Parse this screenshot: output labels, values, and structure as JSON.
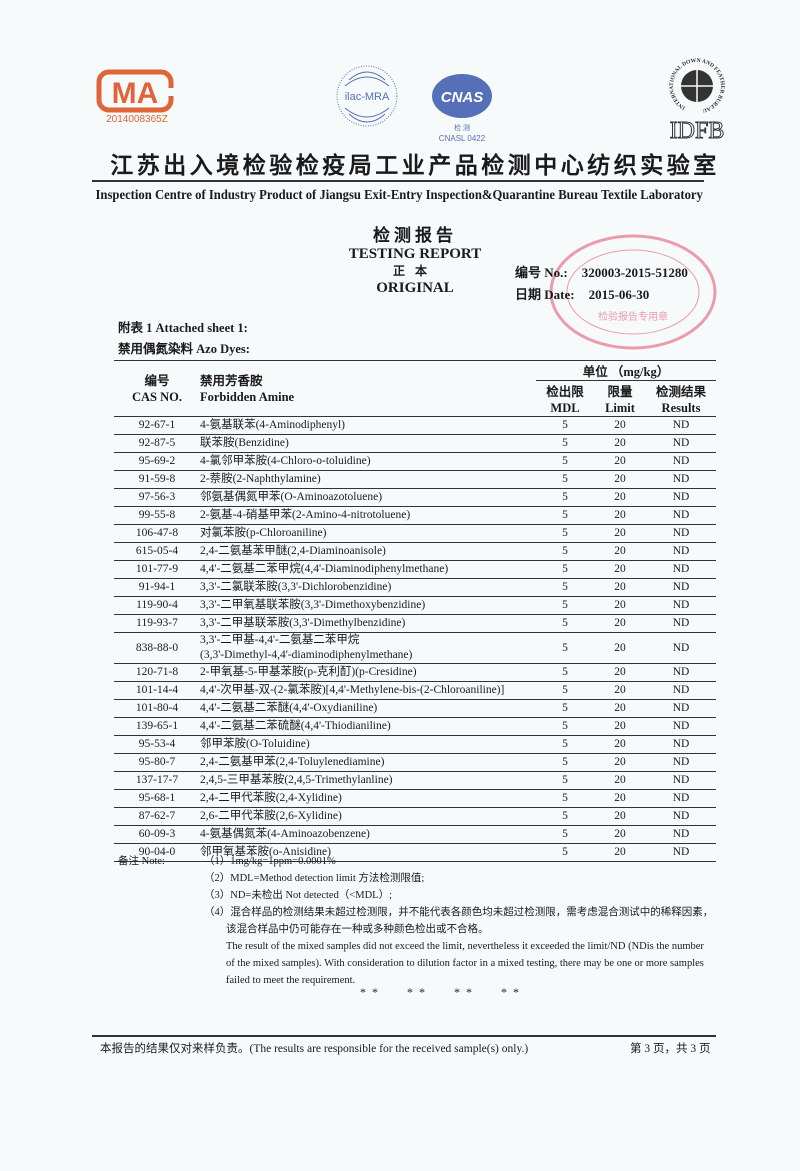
{
  "header": {
    "cma_logo_text": "MA",
    "cma_number": "2014008365Z",
    "ilac_logo_text": "ilac-MRA",
    "cnas_logo_text": "CNAS",
    "cnas_sub": "检 测",
    "cnas_number": "CNASL 0422",
    "idfb_logo_text": "IDFB",
    "idfb_ring_text": "INTERNATIONAL DOWN AND FEATHER BUREAU",
    "title_cn": "江苏出入境检验检疫局工业产品检测中心纺织实验室",
    "title_en": "Inspection Centre of Industry Product of Jiangsu Exit-Entry Inspection&Quarantine Bureau Textile Laboratory"
  },
  "report": {
    "title_cn": "检测报告",
    "title_en": "TESTING REPORT",
    "copy_cn": "正本",
    "copy_en": "ORIGINAL",
    "no_label": "编号 No.:",
    "no_value": "320003-2015-51280",
    "date_label": "日期 Date:",
    "date_value": "2015-06-30",
    "stamp_text": "检验报告专用章",
    "colors": {
      "stamp": "#e0506a",
      "cma": "#e0643a",
      "logo_blue": "#5570b8"
    }
  },
  "sheet": {
    "attached": "附表 1 Attached sheet 1:",
    "category": "禁用偶氮染料 Azo Dyes:"
  },
  "table": {
    "col_cas_cn": "编号",
    "col_cas_en": "CAS NO.",
    "col_amine_cn": "禁用芳香胺",
    "col_amine_en": "Forbidden Amine",
    "unit": "单位 （mg/kg）",
    "col_mdl_cn": "检出限",
    "col_mdl_en": "MDL",
    "col_limit_cn": "限量",
    "col_limit_en": "Limit",
    "col_result_cn": "检测结果",
    "col_result_en": "Results",
    "rows": [
      {
        "cas": "92-67-1",
        "amine": "4-氨基联苯(4-Aminodiphenyl)",
        "mdl": "5",
        "limit": "20",
        "result": "ND"
      },
      {
        "cas": "92-87-5",
        "amine": "联苯胺(Benzidine)",
        "mdl": "5",
        "limit": "20",
        "result": "ND"
      },
      {
        "cas": "95-69-2",
        "amine": "4-氯邻甲苯胺(4-Chloro-o-toluidine)",
        "mdl": "5",
        "limit": "20",
        "result": "ND"
      },
      {
        "cas": "91-59-8",
        "amine": "2-萘胺(2-Naphthylamine)",
        "mdl": "5",
        "limit": "20",
        "result": "ND"
      },
      {
        "cas": "97-56-3",
        "amine": "邻氨基偶氮甲苯(O-Aminoazotoluene)",
        "mdl": "5",
        "limit": "20",
        "result": "ND"
      },
      {
        "cas": "99-55-8",
        "amine": "2-氨基-4-硝基甲苯(2-Amino-4-nitrotoluene)",
        "mdl": "5",
        "limit": "20",
        "result": "ND"
      },
      {
        "cas": "106-47-8",
        "amine": "对氯苯胺(p-Chloroaniline)",
        "mdl": "5",
        "limit": "20",
        "result": "ND"
      },
      {
        "cas": "615-05-4",
        "amine": "2,4-二氨基苯甲醚(2,4-Diaminoanisole)",
        "mdl": "5",
        "limit": "20",
        "result": "ND"
      },
      {
        "cas": "101-77-9",
        "amine": "4,4'-二氨基二苯甲烷(4,4'-Diaminodiphenylmethane)",
        "mdl": "5",
        "limit": "20",
        "result": "ND"
      },
      {
        "cas": "91-94-1",
        "amine": "3,3'-二氯联苯胺(3,3'-Dichlorobenzidine)",
        "mdl": "5",
        "limit": "20",
        "result": "ND"
      },
      {
        "cas": "119-90-4",
        "amine": "3,3'-二甲氧基联苯胺(3,3'-Dimethoxybenzidine)",
        "mdl": "5",
        "limit": "20",
        "result": "ND"
      },
      {
        "cas": "119-93-7",
        "amine": "3,3'-二甲基联苯胺(3,3'-Dimethylbenzidine)",
        "mdl": "5",
        "limit": "20",
        "result": "ND"
      },
      {
        "cas": "838-88-0",
        "amine": "3,3'-二甲基-4,4'-二氨基二苯甲烷",
        "amine2": "(3,3'-Dimethyl-4,4'-diaminodiphenylmethane)",
        "mdl": "5",
        "limit": "20",
        "result": "ND"
      },
      {
        "cas": "120-71-8",
        "amine": "2-甲氧基-5-甲基苯胺(p-克利酊)(p-Cresidine)",
        "mdl": "5",
        "limit": "20",
        "result": "ND"
      },
      {
        "cas": "101-14-4",
        "amine": "4,4'-次甲基-双-(2-氯苯胺)[4,4'-Methylene-bis-(2-Chloroaniline)]",
        "mdl": "5",
        "limit": "20",
        "result": "ND"
      },
      {
        "cas": "101-80-4",
        "amine": "4,4'-二氨基二苯醚(4,4'-Oxydianiline)",
        "mdl": "5",
        "limit": "20",
        "result": "ND"
      },
      {
        "cas": "139-65-1",
        "amine": "4,4'-二氨基二苯硫醚(4,4'-Thiodianiline)",
        "mdl": "5",
        "limit": "20",
        "result": "ND"
      },
      {
        "cas": "95-53-4",
        "amine": "邻甲苯胺(O-Toluidine)",
        "mdl": "5",
        "limit": "20",
        "result": "ND"
      },
      {
        "cas": "95-80-7",
        "amine": "2,4-二氨基甲苯(2,4-Toluylenediamine)",
        "mdl": "5",
        "limit": "20",
        "result": "ND"
      },
      {
        "cas": "137-17-7",
        "amine": "2,4,5-三甲基苯胺(2,4,5-Trimethylanline)",
        "mdl": "5",
        "limit": "20",
        "result": "ND"
      },
      {
        "cas": "95-68-1",
        "amine": "2,4-二甲代苯胺(2,4-Xylidine)",
        "mdl": "5",
        "limit": "20",
        "result": "ND"
      },
      {
        "cas": "87-62-7",
        "amine": "2,6-二甲代苯胺(2,6-Xylidine)",
        "mdl": "5",
        "limit": "20",
        "result": "ND"
      },
      {
        "cas": "60-09-3",
        "amine": "4-氨基偶氮苯(4-Aminoazobenzene)",
        "mdl": "5",
        "limit": "20",
        "result": "ND"
      },
      {
        "cas": "90-04-0",
        "amine": "邻甲氧基苯胺(o-Anisidine)",
        "mdl": "5",
        "limit": "20",
        "result": "ND"
      }
    ]
  },
  "notes": {
    "label": "备注 Note:",
    "items": [
      "（1）1mg/kg=1ppm=0.0001%",
      "（2）MDL=Method detection limit 方法检测限值;",
      "（3）ND=未检出 Not detected（<MDL）;",
      "（4）混合样品的检测结果未超过检测限，并不能代表各颜色均未超过检测限，需考虑混合测试中的稀释因素，该混合样品中仍可能存在一种或多种颜色检出或不合格。",
      "The result of the mixed samples did not exceed the limit, nevertheless it exceeded the limit/ND (NDis the number of the mixed samples). With consideration to dilution factor in a mixed testing, there may be one or more samples failed to meet the requirement."
    ],
    "end_marks": "** ** ** **"
  },
  "footer": {
    "disclaimer": "本报告的结果仅对来样负责。(The results are responsible for the received sample(s) only.)",
    "page": "第 3 页，共 3 页"
  }
}
